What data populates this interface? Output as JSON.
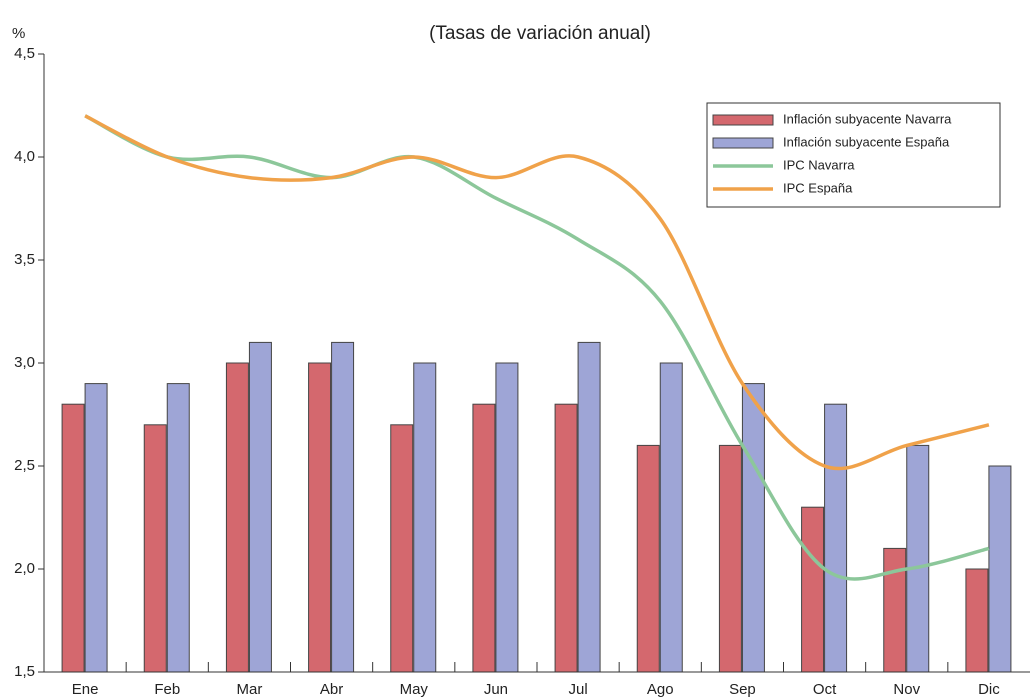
{
  "chart_data": {
    "type": "bar",
    "title": "(Tasas de variación anual)",
    "y_label": "%",
    "categories": [
      "Ene",
      "Feb",
      "Mar",
      "Abr",
      "May",
      "Jun",
      "Jul",
      "Ago",
      "Sep",
      "Oct",
      "Nov",
      "Dic"
    ],
    "series": [
      {
        "name": "Inflación subyacente Navarra",
        "type": "bar",
        "color": "#d4686e",
        "values": [
          2.8,
          2.7,
          3.0,
          3.0,
          2.7,
          2.8,
          2.8,
          2.6,
          2.6,
          2.3,
          2.1,
          2.0
        ]
      },
      {
        "name": "Inflación subyacente España",
        "type": "bar",
        "color": "#9ea5d6",
        "values": [
          2.9,
          2.9,
          3.1,
          3.1,
          3.0,
          3.0,
          3.1,
          3.0,
          2.9,
          2.8,
          2.6,
          2.5
        ]
      },
      {
        "name": "IPC Navarra",
        "type": "line",
        "color": "#8cc79a",
        "values": [
          4.2,
          4.0,
          4.0,
          3.9,
          4.0,
          3.8,
          3.6,
          3.3,
          2.6,
          2.0,
          2.0,
          2.1
        ]
      },
      {
        "name": "IPC España",
        "type": "line",
        "color": "#f0a24a",
        "values": [
          4.2,
          4.0,
          3.9,
          3.9,
          4.0,
          3.9,
          4.0,
          3.7,
          2.9,
          2.5,
          2.6,
          2.7
        ]
      }
    ],
    "ylim": [
      1.5,
      4.5
    ],
    "yticks": [
      {
        "value": 1.5,
        "label": "1,5"
      },
      {
        "value": 2.0,
        "label": "2,0"
      },
      {
        "value": 2.5,
        "label": "2,5"
      },
      {
        "value": 3.0,
        "label": "3,0"
      },
      {
        "value": 3.5,
        "label": "3,5"
      },
      {
        "value": 4.0,
        "label": "4,0"
      },
      {
        "value": 4.5,
        "label": "4,5"
      }
    ],
    "legend": "upper right"
  }
}
